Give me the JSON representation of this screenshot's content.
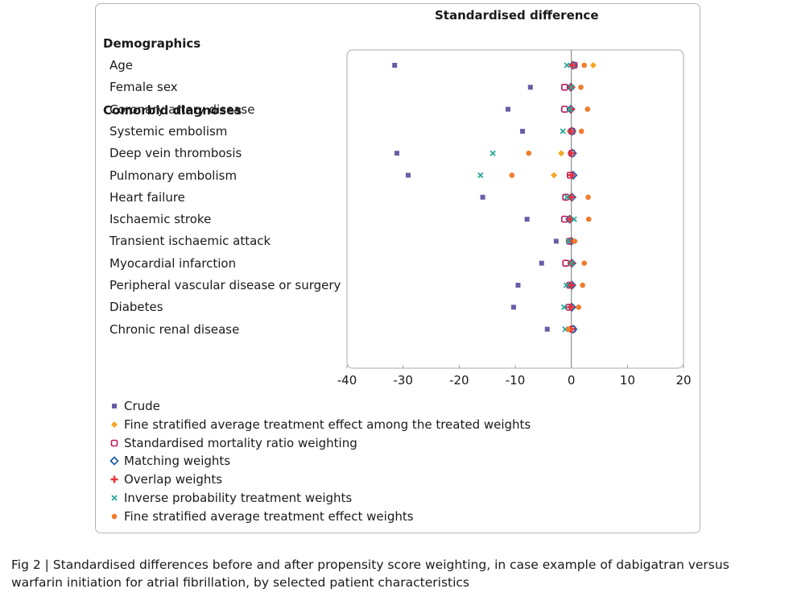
{
  "chart_data": {
    "type": "scatter",
    "title": "Standardised difference",
    "xlim": [
      -40,
      20
    ],
    "xticks": [
      -40,
      -30,
      -20,
      -10,
      0,
      10,
      20
    ],
    "sections": [
      {
        "label": "Demographics",
        "before_row": 0
      },
      {
        "label": "Comorbid diagnoses",
        "before_row": 2
      }
    ],
    "categories": [
      "Age",
      "Female sex",
      "Coronary artery disease",
      "Systemic embolism",
      "Deep vein thrombosis",
      "Pulmonary embolism",
      "Heart failure",
      "Ischaemic stroke",
      "Transient ischaemic attack",
      "Myocardial infarction",
      "Peripheral vascular disease or surgery",
      "Diabetes",
      "Chronic renal disease"
    ],
    "series": [
      {
        "name": "Crude",
        "marker": "square",
        "color": "#6b5ba8",
        "values": [
          -31.5,
          -7.3,
          -11.3,
          -8.7,
          -31.1,
          -29.1,
          -15.8,
          -7.9,
          -2.7,
          -5.3,
          -9.5,
          -10.3,
          -4.3
        ]
      },
      {
        "name": "Fine stratified average treatment effect among the treated weights",
        "marker": "diamond",
        "color": "#f5a623",
        "values": [
          3.9,
          0.1,
          -0.4,
          -0.3,
          -1.8,
          -3.1,
          -0.3,
          -0.4,
          -0.5,
          -0.3,
          -0.5,
          -0.6,
          -0.5
        ]
      },
      {
        "name": "Standardised mortality ratio weighting",
        "marker": "open-square",
        "color": "#c2185b",
        "values": [
          0.5,
          -1.2,
          -1.2,
          0.1,
          0.1,
          -0.2,
          -1.0,
          -1.2,
          -0.3,
          -1.0,
          -0.3,
          -0.4,
          0.2
        ]
      },
      {
        "name": "Matching weights",
        "marker": "open-diamond",
        "color": "#1f5fa8",
        "values": [
          0.3,
          -0.1,
          -0.1,
          0.1,
          0.2,
          0.3,
          0.1,
          -0.3,
          0.0,
          0.1,
          0.1,
          0.1,
          0.3
        ]
      },
      {
        "name": "Overlap weights",
        "marker": "plus",
        "color": "#e8343e",
        "values": [
          0.2,
          0.0,
          0.0,
          0.0,
          0.0,
          0.0,
          0.0,
          -0.2,
          -0.1,
          0.0,
          0.0,
          -0.1,
          0.0
        ]
      },
      {
        "name": "Inverse probability treatment weights",
        "marker": "x",
        "color": "#2aa89a",
        "values": [
          -0.8,
          0.0,
          -0.3,
          -1.5,
          -14.0,
          -16.2,
          -0.8,
          0.5,
          -0.5,
          0.0,
          -0.9,
          -1.3,
          -1.1
        ]
      },
      {
        "name": "Fine stratified average treatment effect weights",
        "marker": "circle",
        "color": "#f07c2c",
        "values": [
          2.3,
          1.7,
          2.9,
          1.8,
          -7.6,
          -10.6,
          3.0,
          3.1,
          0.6,
          2.3,
          2.0,
          1.3,
          -0.5
        ]
      }
    ],
    "grid": false,
    "legend_position": "bottom"
  },
  "caption": "Fig 2 | Standardised differences before and after propensity score weighting, in case example of dabigatran versus warfarin initiation for atrial fibrillation, by selected patient characteristics"
}
